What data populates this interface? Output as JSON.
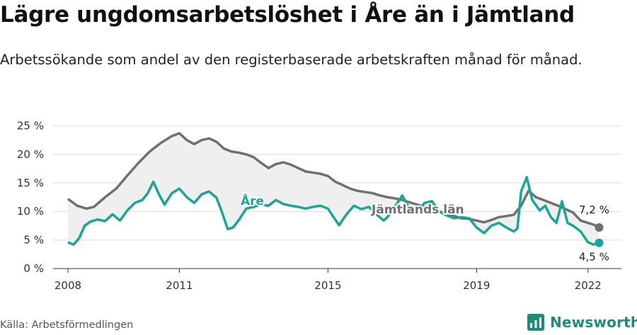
{
  "header": {
    "title": "Lägre ungdomsarbetslöshet i Åre än i Jämtland",
    "subtitle": "Arbetssökande som andel av den registerbaserade arbetskraften månad för månad."
  },
  "footer": {
    "source": "Källa: Arbetsförmedlingen",
    "brand": "Newsworthy"
  },
  "colors": {
    "are": "#1aa596",
    "lan": "#707070",
    "fill": "#efefef",
    "grid": "#dcdcdc",
    "brand": "#1e8c77"
  },
  "chart_data": {
    "type": "line",
    "y_ticks": [
      "0 %",
      "5 %",
      "10 %",
      "15 %",
      "20 %",
      "25 %"
    ],
    "ylim": [
      0,
      25
    ],
    "x_ticks": [
      "2008",
      "2011",
      "2015",
      "2019",
      "2022"
    ],
    "xlim": [
      2007.6,
      2022.9
    ],
    "grid": "horizontal",
    "series": [
      {
        "name": "Jämtlands län",
        "label": "Jämtlands län",
        "end_label": "7,2 %",
        "points": [
          [
            2008.0,
            12.2
          ],
          [
            2008.25,
            11.0
          ],
          [
            2008.5,
            10.5
          ],
          [
            2008.7,
            10.8
          ],
          [
            2009.0,
            12.5
          ],
          [
            2009.3,
            14.0
          ],
          [
            2009.6,
            16.3
          ],
          [
            2009.9,
            18.5
          ],
          [
            2010.2,
            20.5
          ],
          [
            2010.5,
            22.0
          ],
          [
            2010.8,
            23.2
          ],
          [
            2011.0,
            23.7
          ],
          [
            2011.2,
            22.5
          ],
          [
            2011.4,
            21.8
          ],
          [
            2011.6,
            22.5
          ],
          [
            2011.8,
            22.8
          ],
          [
            2012.0,
            22.2
          ],
          [
            2012.2,
            21.0
          ],
          [
            2012.4,
            20.5
          ],
          [
            2012.6,
            20.3
          ],
          [
            2012.8,
            20.0
          ],
          [
            2013.0,
            19.5
          ],
          [
            2013.2,
            18.5
          ],
          [
            2013.4,
            17.6
          ],
          [
            2013.6,
            18.3
          ],
          [
            2013.8,
            18.6
          ],
          [
            2014.0,
            18.2
          ],
          [
            2014.2,
            17.6
          ],
          [
            2014.4,
            17.0
          ],
          [
            2014.6,
            16.8
          ],
          [
            2014.8,
            16.6
          ],
          [
            2015.0,
            16.2
          ],
          [
            2015.2,
            15.2
          ],
          [
            2015.4,
            14.6
          ],
          [
            2015.6,
            14.0
          ],
          [
            2015.8,
            13.6
          ],
          [
            2016.0,
            13.4
          ],
          [
            2016.2,
            13.2
          ],
          [
            2016.4,
            12.8
          ],
          [
            2016.6,
            12.5
          ],
          [
            2016.8,
            12.3
          ],
          [
            2017.0,
            12.0
          ],
          [
            2017.2,
            11.6
          ],
          [
            2017.4,
            11.2
          ],
          [
            2017.6,
            10.8
          ],
          [
            2017.8,
            10.4
          ],
          [
            2018.0,
            10.0
          ],
          [
            2018.2,
            9.6
          ],
          [
            2018.4,
            9.2
          ],
          [
            2018.6,
            8.8
          ],
          [
            2018.8,
            8.7
          ],
          [
            2019.0,
            8.4
          ],
          [
            2019.2,
            8.1
          ],
          [
            2019.4,
            8.5
          ],
          [
            2019.6,
            9.0
          ],
          [
            2019.8,
            9.2
          ],
          [
            2020.0,
            9.4
          ],
          [
            2020.2,
            11.0
          ],
          [
            2020.4,
            13.6
          ],
          [
            2020.6,
            12.5
          ],
          [
            2020.8,
            12.0
          ],
          [
            2021.0,
            11.5
          ],
          [
            2021.2,
            11.0
          ],
          [
            2021.4,
            10.4
          ],
          [
            2021.6,
            9.8
          ],
          [
            2021.8,
            8.4
          ],
          [
            2022.0,
            8.0
          ],
          [
            2022.15,
            7.7
          ],
          [
            2022.3,
            7.2
          ]
        ]
      },
      {
        "name": "Åre",
        "label": "Åre",
        "end_label": "4,5 %",
        "points": [
          [
            2008.0,
            4.6
          ],
          [
            2008.15,
            4.2
          ],
          [
            2008.3,
            5.3
          ],
          [
            2008.45,
            7.5
          ],
          [
            2008.6,
            8.2
          ],
          [
            2008.8,
            8.6
          ],
          [
            2009.0,
            8.3
          ],
          [
            2009.2,
            9.5
          ],
          [
            2009.4,
            8.4
          ],
          [
            2009.6,
            10.2
          ],
          [
            2009.8,
            11.5
          ],
          [
            2010.0,
            12.0
          ],
          [
            2010.15,
            13.2
          ],
          [
            2010.3,
            15.2
          ],
          [
            2010.45,
            13.0
          ],
          [
            2010.6,
            11.2
          ],
          [
            2010.8,
            13.2
          ],
          [
            2011.0,
            14.0
          ],
          [
            2011.2,
            12.5
          ],
          [
            2011.4,
            11.5
          ],
          [
            2011.6,
            13.0
          ],
          [
            2011.8,
            13.5
          ],
          [
            2012.0,
            12.4
          ],
          [
            2012.15,
            9.8
          ],
          [
            2012.3,
            6.9
          ],
          [
            2012.45,
            7.2
          ],
          [
            2012.6,
            8.5
          ],
          [
            2012.8,
            10.5
          ],
          [
            2013.0,
            10.8
          ],
          [
            2013.2,
            11.2
          ],
          [
            2013.4,
            11.0
          ],
          [
            2013.6,
            12.0
          ],
          [
            2013.8,
            11.3
          ],
          [
            2014.0,
            11.0
          ],
          [
            2014.2,
            10.8
          ],
          [
            2014.4,
            10.5
          ],
          [
            2014.6,
            10.8
          ],
          [
            2014.8,
            11.0
          ],
          [
            2015.0,
            10.5
          ],
          [
            2015.15,
            9.0
          ],
          [
            2015.3,
            7.6
          ],
          [
            2015.5,
            9.5
          ],
          [
            2015.7,
            11.0
          ],
          [
            2015.9,
            10.4
          ],
          [
            2016.1,
            10.8
          ],
          [
            2016.3,
            9.5
          ],
          [
            2016.5,
            8.4
          ],
          [
            2016.6,
            9.0
          ],
          [
            2016.8,
            10.8
          ],
          [
            2017.0,
            12.8
          ],
          [
            2017.2,
            10.5
          ],
          [
            2017.4,
            10.0
          ],
          [
            2017.6,
            11.5
          ],
          [
            2017.8,
            11.8
          ],
          [
            2018.0,
            10.0
          ],
          [
            2018.2,
            9.3
          ],
          [
            2018.4,
            8.8
          ],
          [
            2018.6,
            9.0
          ],
          [
            2018.8,
            8.8
          ],
          [
            2019.0,
            7.2
          ],
          [
            2019.2,
            6.2
          ],
          [
            2019.4,
            7.5
          ],
          [
            2019.6,
            8.0
          ],
          [
            2019.8,
            7.2
          ],
          [
            2020.0,
            6.5
          ],
          [
            2020.1,
            7.0
          ],
          [
            2020.2,
            13.5
          ],
          [
            2020.35,
            16.0
          ],
          [
            2020.5,
            12.0
          ],
          [
            2020.7,
            10.2
          ],
          [
            2020.85,
            11.0
          ],
          [
            2021.0,
            9.0
          ],
          [
            2021.15,
            8.0
          ],
          [
            2021.3,
            11.8
          ],
          [
            2021.45,
            8.0
          ],
          [
            2021.6,
            7.5
          ],
          [
            2021.8,
            6.5
          ],
          [
            2022.0,
            4.6
          ],
          [
            2022.15,
            4.2
          ],
          [
            2022.3,
            4.5
          ]
        ]
      }
    ]
  }
}
